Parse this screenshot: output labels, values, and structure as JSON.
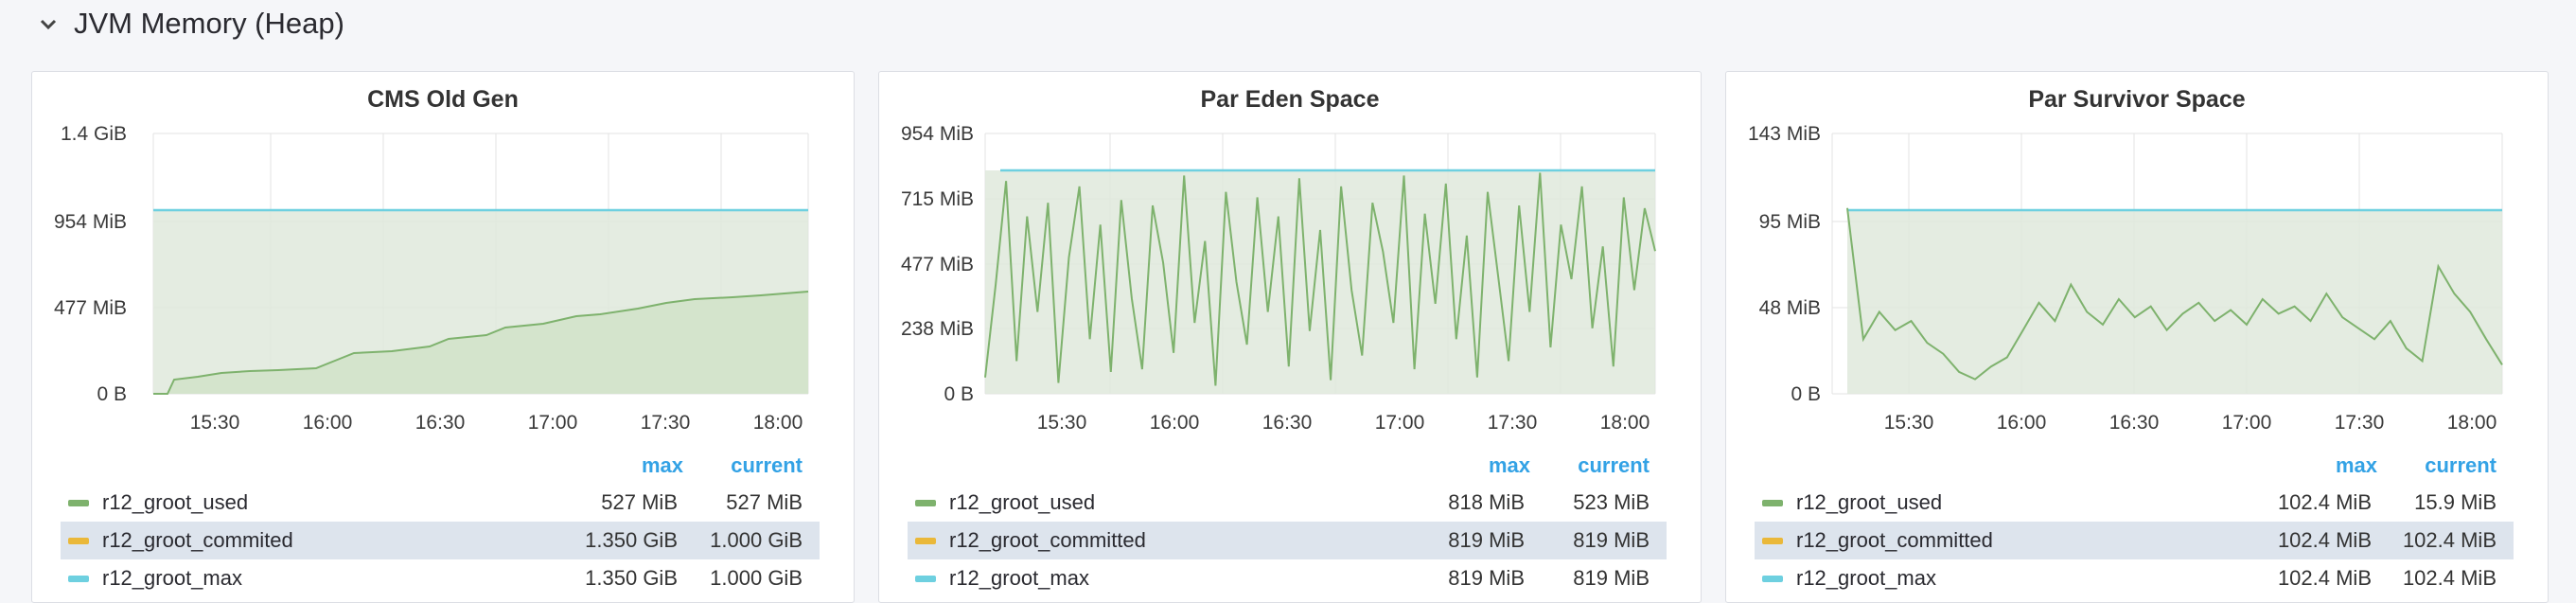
{
  "row": {
    "title": "JVM Memory (Heap)"
  },
  "colors": {
    "used": "#7eb26d",
    "committed": "#eab839",
    "max": "#6ed0e0",
    "legend_header": "#33a2e5"
  },
  "x_ticks": [
    "15:30",
    "16:00",
    "16:30",
    "17:00",
    "17:30",
    "18:00"
  ],
  "legend_header": {
    "max": "max",
    "current": "current"
  },
  "panels": [
    {
      "title": "CMS Old Gen",
      "y_ticks": [
        "1.4 GiB",
        "954 MiB",
        "477 MiB",
        "0 B"
      ],
      "legend": [
        {
          "name": "r12_groot_used",
          "max": "527 MiB",
          "current": "527 MiB",
          "color": "#7eb26d"
        },
        {
          "name": "r12_groot_commited",
          "max": "1.350 GiB",
          "current": "1.000 GiB",
          "color": "#eab839"
        },
        {
          "name": "r12_groot_max",
          "max": "1.350 GiB",
          "current": "1.000 GiB",
          "color": "#6ed0e0"
        }
      ]
    },
    {
      "title": "Par Eden Space",
      "y_ticks": [
        "954 MiB",
        "715 MiB",
        "477 MiB",
        "238 MiB",
        "0 B"
      ],
      "legend": [
        {
          "name": "r12_groot_used",
          "max": "818 MiB",
          "current": "523 MiB",
          "color": "#7eb26d"
        },
        {
          "name": "r12_groot_committed",
          "max": "819 MiB",
          "current": "819 MiB",
          "color": "#eab839"
        },
        {
          "name": "r12_groot_max",
          "max": "819 MiB",
          "current": "819 MiB",
          "color": "#6ed0e0"
        }
      ]
    },
    {
      "title": "Par Survivor Space",
      "y_ticks": [
        "143 MiB",
        "95 MiB",
        "48 MiB",
        "0 B"
      ],
      "legend": [
        {
          "name": "r12_groot_used",
          "max": "102.4 MiB",
          "current": "15.9 MiB",
          "color": "#7eb26d"
        },
        {
          "name": "r12_groot_committed",
          "max": "102.4 MiB",
          "current": "102.4 MiB",
          "color": "#eab839"
        },
        {
          "name": "r12_groot_max",
          "max": "102.4 MiB",
          "current": "102.4 MiB",
          "color": "#6ed0e0"
        }
      ]
    }
  ],
  "chart_data": [
    {
      "type": "line",
      "title": "CMS Old Gen",
      "x": [
        "15:10",
        "15:30",
        "15:45",
        "16:00",
        "16:15",
        "16:30",
        "16:45",
        "17:00",
        "17:15",
        "17:30",
        "17:45",
        "18:00",
        "18:10"
      ],
      "series": [
        {
          "name": "r12_groot_used",
          "values": [
            0,
            60,
            90,
            115,
            170,
            225,
            280,
            330,
            380,
            440,
            480,
            505,
            527
          ]
        },
        {
          "name": "r12_groot_max",
          "values": [
            1024,
            1024,
            1024,
            1024,
            1024,
            1024,
            1024,
            1024,
            1024,
            1024,
            1024,
            1024,
            1024
          ]
        }
      ],
      "ylim": [
        0,
        1430
      ],
      "ylabel_ticks": [
        "0 B",
        "477 MiB",
        "954 MiB",
        "1.4 GiB"
      ]
    },
    {
      "type": "line",
      "title": "Par Eden Space",
      "series": [
        {
          "name": "r12_groot_used",
          "values": [
            60,
            400,
            780,
            120,
            650,
            300,
            700,
            40,
            500,
            760,
            200,
            620,
            80,
            710,
            350,
            90,
            690,
            480,
            150,
            800,
            260,
            560,
            30,
            740,
            410,
            180,
            720,
            300,
            650,
            100,
            790,
            230,
            600,
            50,
            760,
            380,
            140,
            700,
            520,
            260,
            800,
            90,
            660,
            330,
            770,
            200,
            580,
            60,
            740,
            430,
            120,
            690,
            300,
            810,
            170,
            620,
            420,
            760,
            240,
            540,
            100,
            720,
            380,
            680,
            523
          ]
        },
        {
          "name": "r12_groot_committed",
          "values": [
            819
          ]
        }
      ],
      "ylim": [
        0,
        954
      ]
    },
    {
      "type": "line",
      "title": "Par Survivor Space",
      "series": [
        {
          "name": "r12_groot_used",
          "values": [
            102,
            30,
            45,
            35,
            40,
            28,
            22,
            12,
            8,
            15,
            20,
            35,
            50,
            40,
            60,
            45,
            38,
            52,
            42,
            48,
            35,
            44,
            50,
            40,
            46,
            38,
            52,
            44,
            48,
            40,
            55,
            42,
            36,
            30,
            40,
            25,
            18,
            70,
            55,
            45,
            30,
            15.9
          ]
        },
        {
          "name": "r12_groot_committed",
          "values": [
            102.4
          ]
        }
      ],
      "ylim": [
        0,
        143
      ]
    }
  ]
}
